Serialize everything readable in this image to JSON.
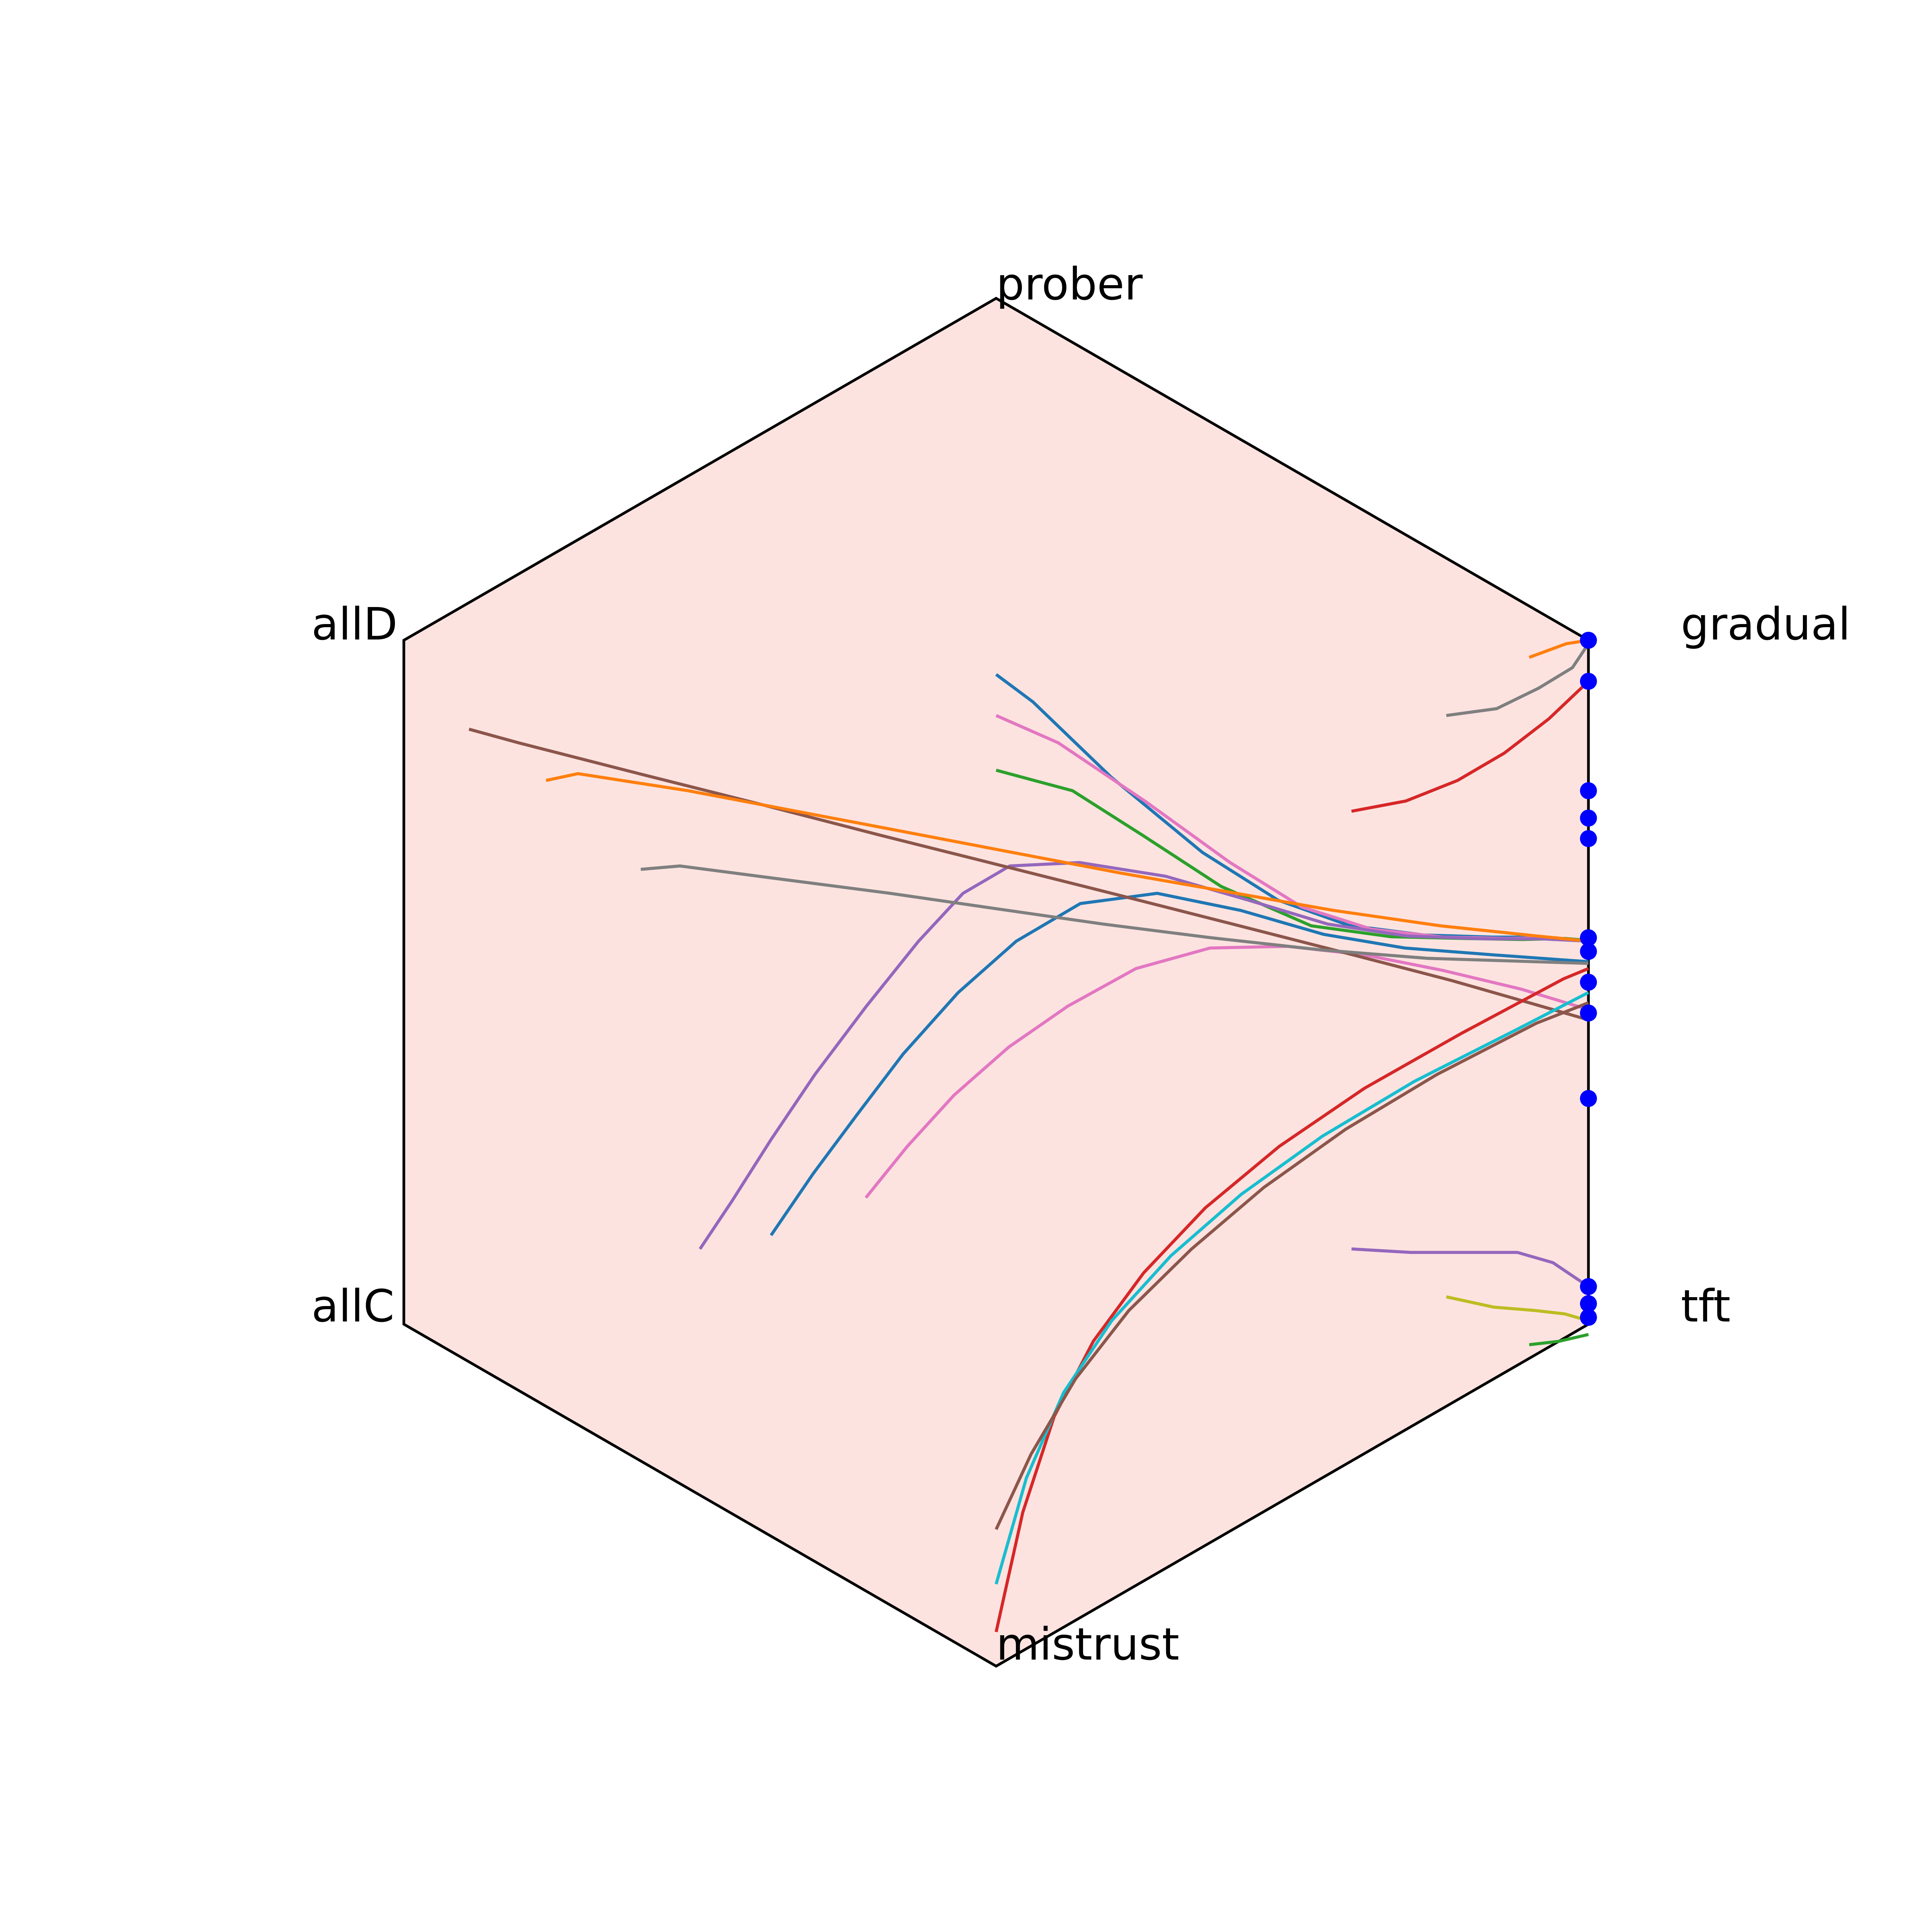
{
  "chart_data": {
    "type": "line",
    "chart_kind": "hexagonal simplex trajectories",
    "title": "",
    "vertices": [
      "prober",
      "gradual",
      "tft",
      "mistrust",
      "allC",
      "allD"
    ],
    "background_color": "#fde3e0",
    "endpoint_color": "#0000ff",
    "palette": [
      "#1f77b4",
      "#ff7f0e",
      "#2ca02c",
      "#d62728",
      "#9467bd",
      "#8c564b",
      "#e377c2",
      "#7f7f7f",
      "#bcbd22",
      "#17becf"
    ],
    "series": [
      {
        "color": "#1f77b4",
        "points": [
          [
            0.0,
            0.9
          ],
          [
            0.062,
            0.82
          ],
          [
            0.194,
            0.6
          ],
          [
            0.348,
            0.38
          ],
          [
            0.476,
            0.24
          ],
          [
            0.596,
            0.166
          ],
          [
            0.723,
            0.138
          ],
          [
            0.838,
            0.132
          ],
          [
            0.931,
            0.132
          ],
          [
            1.0,
            0.12
          ]
        ]
      },
      {
        "color": "#e377c2",
        "points": [
          [
            0.0,
            0.78
          ],
          [
            0.105,
            0.7
          ],
          [
            0.251,
            0.53
          ],
          [
            0.395,
            0.35
          ],
          [
            0.516,
            0.22
          ],
          [
            0.634,
            0.155
          ],
          [
            0.754,
            0.132
          ],
          [
            0.862,
            0.128
          ],
          [
            0.944,
            0.13
          ],
          [
            1.0,
            0.12
          ]
        ]
      },
      {
        "color": "#2ca02c",
        "points": [
          [
            0.0,
            0.62
          ],
          [
            0.129,
            0.56
          ],
          [
            0.247,
            0.43
          ],
          [
            0.38,
            0.28
          ],
          [
            0.532,
            0.165
          ],
          [
            0.667,
            0.133
          ],
          [
            0.79,
            0.128
          ],
          [
            0.889,
            0.125
          ],
          [
            0.96,
            0.128
          ],
          [
            1.0,
            0.122
          ]
        ]
      },
      {
        "color": "#9467bd",
        "points": [
          [
            -0.5,
            -0.78
          ],
          [
            -0.446,
            -0.64
          ],
          [
            -0.38,
            -0.46
          ],
          [
            -0.306,
            -0.27
          ],
          [
            -0.219,
            -0.07
          ],
          [
            -0.131,
            0.12
          ],
          [
            -0.056,
            0.26
          ],
          [
            0.023,
            0.34
          ],
          [
            0.141,
            0.35
          ],
          [
            0.286,
            0.31
          ],
          [
            0.426,
            0.24
          ],
          [
            0.56,
            0.17
          ],
          [
            0.694,
            0.135
          ],
          [
            0.825,
            0.127
          ],
          [
            0.92,
            0.127
          ],
          [
            1.0,
            0.12
          ]
        ]
      },
      {
        "color": "#1f77b4",
        "points": [
          [
            -0.38,
            -0.74
          ],
          [
            -0.309,
            -0.56
          ],
          [
            -0.236,
            -0.39
          ],
          [
            -0.157,
            -0.21
          ],
          [
            -0.064,
            -0.03
          ],
          [
            0.034,
            0.12
          ],
          [
            0.142,
            0.23
          ],
          [
            0.272,
            0.26
          ],
          [
            0.413,
            0.21
          ],
          [
            0.553,
            0.14
          ],
          [
            0.69,
            0.1
          ],
          [
            0.84,
            0.08
          ],
          [
            1.0,
            0.06
          ]
        ]
      },
      {
        "color": "#e377c2",
        "points": [
          [
            -0.22,
            -0.63
          ],
          [
            -0.15,
            -0.48
          ],
          [
            -0.071,
            -0.33
          ],
          [
            0.021,
            -0.19
          ],
          [
            0.121,
            -0.07
          ],
          [
            0.236,
            0.04
          ],
          [
            0.361,
            0.1
          ],
          [
            0.492,
            0.105
          ],
          [
            0.622,
            0.08
          ],
          [
            0.753,
            0.035
          ],
          [
            0.886,
            -0.02
          ],
          [
            1.0,
            -0.08
          ]
        ]
      },
      {
        "color": "#8c564b",
        "points": [
          [
            -0.89,
            0.74
          ],
          [
            -0.806,
            0.7
          ],
          [
            -0.603,
            0.61
          ],
          [
            -0.397,
            0.52
          ],
          [
            -0.196,
            0.43
          ],
          [
            0.0,
            0.345
          ],
          [
            0.195,
            0.26
          ],
          [
            0.388,
            0.175
          ],
          [
            0.58,
            0.09
          ],
          [
            0.769,
            0.005
          ],
          [
            0.9,
            -0.06
          ],
          [
            1.0,
            -0.11
          ]
        ]
      },
      {
        "color": "#ff7f0e",
        "points": [
          [
            -0.76,
            0.59
          ],
          [
            -0.706,
            0.61
          ],
          [
            -0.52,
            0.56
          ],
          [
            -0.337,
            0.5
          ],
          [
            -0.155,
            0.44
          ],
          [
            0.026,
            0.38
          ],
          [
            0.208,
            0.32
          ],
          [
            0.389,
            0.265
          ],
          [
            0.57,
            0.21
          ],
          [
            0.75,
            0.165
          ],
          [
            0.914,
            0.135
          ],
          [
            1.0,
            0.12
          ]
        ]
      },
      {
        "color": "#7f7f7f",
        "points": [
          [
            -0.6,
            0.33
          ],
          [
            -0.534,
            0.34
          ],
          [
            -0.357,
            0.3
          ],
          [
            -0.179,
            0.26
          ],
          [
            0.0,
            0.215
          ],
          [
            0.181,
            0.17
          ],
          [
            0.363,
            0.13
          ],
          [
            0.546,
            0.095
          ],
          [
            0.728,
            0.07
          ],
          [
            0.91,
            0.06
          ],
          [
            1.0,
            0.055
          ]
        ]
      },
      {
        "color": "#d62728",
        "points": [
          [
            0.0,
            -1.9
          ],
          [
            0.045,
            -1.55
          ],
          [
            0.098,
            -1.27
          ],
          [
            0.164,
            -1.05
          ],
          [
            0.249,
            -0.85
          ],
          [
            0.353,
            -0.66
          ],
          [
            0.478,
            -0.48
          ],
          [
            0.622,
            -0.31
          ],
          [
            0.785,
            -0.15
          ],
          [
            0.958,
            0.01
          ],
          [
            1.0,
            0.04
          ]
        ]
      },
      {
        "color": "#17becf",
        "points": [
          [
            0.0,
            -1.76
          ],
          [
            0.051,
            -1.45
          ],
          [
            0.114,
            -1.2
          ],
          [
            0.195,
            -0.99
          ],
          [
            0.295,
            -0.8
          ],
          [
            0.414,
            -0.62
          ],
          [
            0.551,
            -0.45
          ],
          [
            0.706,
            -0.29
          ],
          [
            0.877,
            -0.14
          ],
          [
            1.0,
            -0.03
          ]
        ]
      },
      {
        "color": "#8c564b",
        "points": [
          [
            0.0,
            -1.6
          ],
          [
            0.059,
            -1.38
          ],
          [
            0.134,
            -1.16
          ],
          [
            0.224,
            -0.96
          ],
          [
            0.33,
            -0.78
          ],
          [
            0.452,
            -0.6
          ],
          [
            0.59,
            -0.43
          ],
          [
            0.744,
            -0.27
          ],
          [
            0.912,
            -0.12
          ],
          [
            1.0,
            -0.06
          ]
        ]
      },
      {
        "color": "#ff7f0e",
        "points": [
          [
            0.9,
            0.95
          ],
          [
            0.963,
            0.99
          ],
          [
            1.0,
            1.0
          ]
        ]
      },
      {
        "color": "#7f7f7f",
        "points": [
          [
            0.76,
            0.78
          ],
          [
            0.845,
            0.8
          ],
          [
            0.916,
            0.86
          ],
          [
            0.973,
            0.92
          ],
          [
            1.0,
            0.99
          ]
        ]
      },
      {
        "color": "#d62728",
        "points": [
          [
            0.6,
            0.5
          ],
          [
            0.692,
            0.53
          ],
          [
            0.779,
            0.59
          ],
          [
            0.858,
            0.67
          ],
          [
            0.933,
            0.77
          ],
          [
            1.0,
            0.88
          ]
        ]
      },
      {
        "color": "#ff7f0e",
        "points": [
          [
            1.0,
            -0.09
          ],
          [
            1.0,
            -0.09
          ]
        ]
      },
      {
        "color": "#8c564b",
        "points": [
          [
            1.0,
            -0.34
          ],
          [
            1.0,
            -0.34
          ]
        ]
      },
      {
        "color": "#9467bd",
        "points": [
          [
            0.6,
            -0.78
          ],
          [
            0.7,
            -0.79
          ],
          [
            0.8,
            -0.79
          ],
          [
            0.88,
            -0.79
          ],
          [
            0.94,
            -0.82
          ],
          [
            1.0,
            -0.89
          ]
        ]
      },
      {
        "color": "#bcbd22",
        "points": [
          [
            0.76,
            -0.92
          ],
          [
            0.84,
            -0.95
          ],
          [
            0.91,
            -0.96
          ],
          [
            0.96,
            -0.97
          ],
          [
            1.0,
            -0.99
          ]
        ]
      },
      {
        "color": "#2ca02c",
        "points": [
          [
            0.9,
            -1.06
          ],
          [
            0.95,
            -1.05
          ],
          [
            1.0,
            -1.03
          ]
        ]
      }
    ],
    "endpoints": [
      [
        1.0,
        1.0
      ],
      [
        1.0,
        0.88
      ],
      [
        1.0,
        0.56
      ],
      [
        1.0,
        0.48
      ],
      [
        1.0,
        0.42
      ],
      [
        1.0,
        0.13
      ],
      [
        1.0,
        0.09
      ],
      [
        1.0,
        0.0
      ],
      [
        1.0,
        -0.09
      ],
      [
        1.0,
        -0.34
      ],
      [
        1.0,
        -0.89
      ],
      [
        1.0,
        -0.94
      ],
      [
        1.0,
        -0.98
      ]
    ]
  }
}
